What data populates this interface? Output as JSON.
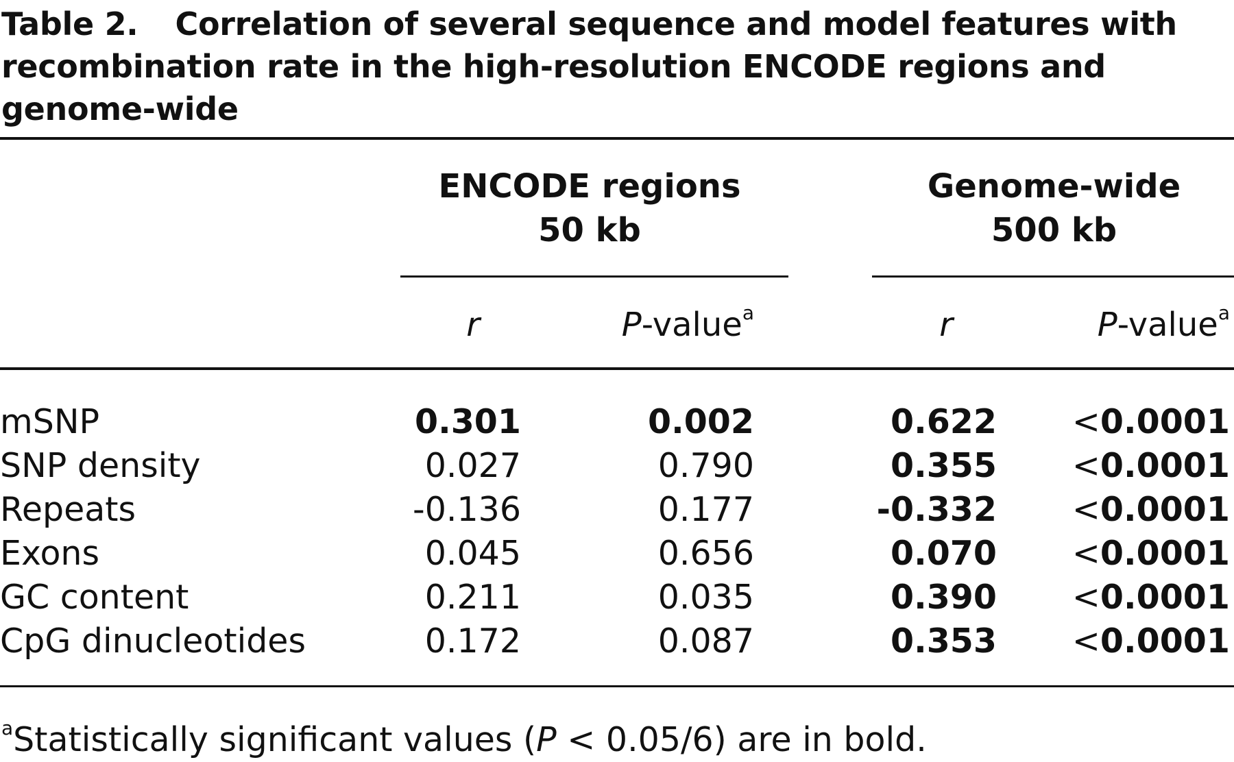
{
  "table": {
    "label": "Table 2.",
    "title": "Correlation of several sequence and model features with recombination rate in the high-resolution ENCODE regions and genome-wide",
    "groups": [
      {
        "name": "ENCODE regions",
        "resolution": "50 kb"
      },
      {
        "name": "Genome-wide",
        "resolution": "500 kb"
      }
    ],
    "subheaders": {
      "r": "r",
      "p_italic": "P",
      "p_rest": "-value",
      "p_sup": "a"
    },
    "rows": [
      {
        "feature": "mSNP",
        "encode_r": "0.301",
        "encode_p": "0.002",
        "genome_r": "0.622",
        "genome_p_prefix": "<",
        "genome_p": "0.0001"
      },
      {
        "feature": "SNP density",
        "encode_r": "0.027",
        "encode_p": "0.790",
        "genome_r": "0.355",
        "genome_p_prefix": "<",
        "genome_p": "0.0001"
      },
      {
        "feature": "Repeats",
        "encode_r": "-0.136",
        "encode_p": "0.177",
        "genome_r": "-0.332",
        "genome_p_prefix": "<",
        "genome_p": "0.0001"
      },
      {
        "feature": "Exons",
        "encode_r": "0.045",
        "encode_p": "0.656",
        "genome_r": "0.070",
        "genome_p_prefix": "<",
        "genome_p": "0.0001"
      },
      {
        "feature": "GC content",
        "encode_r": "0.211",
        "encode_p": "0.035",
        "genome_r": "0.390",
        "genome_p_prefix": "<",
        "genome_p": "0.0001"
      },
      {
        "feature": "CpG dinucleotides",
        "encode_r": "0.172",
        "encode_p": "0.087",
        "genome_r": "0.353",
        "genome_p_prefix": "<",
        "genome_p": "0.0001"
      }
    ],
    "bold_row_indices": [
      0
    ],
    "footnote": {
      "marker": "a",
      "text_start": "Statistically significant values (",
      "p_italic": "P",
      "text_end": " < 0.05/6) are in bold."
    }
  }
}
